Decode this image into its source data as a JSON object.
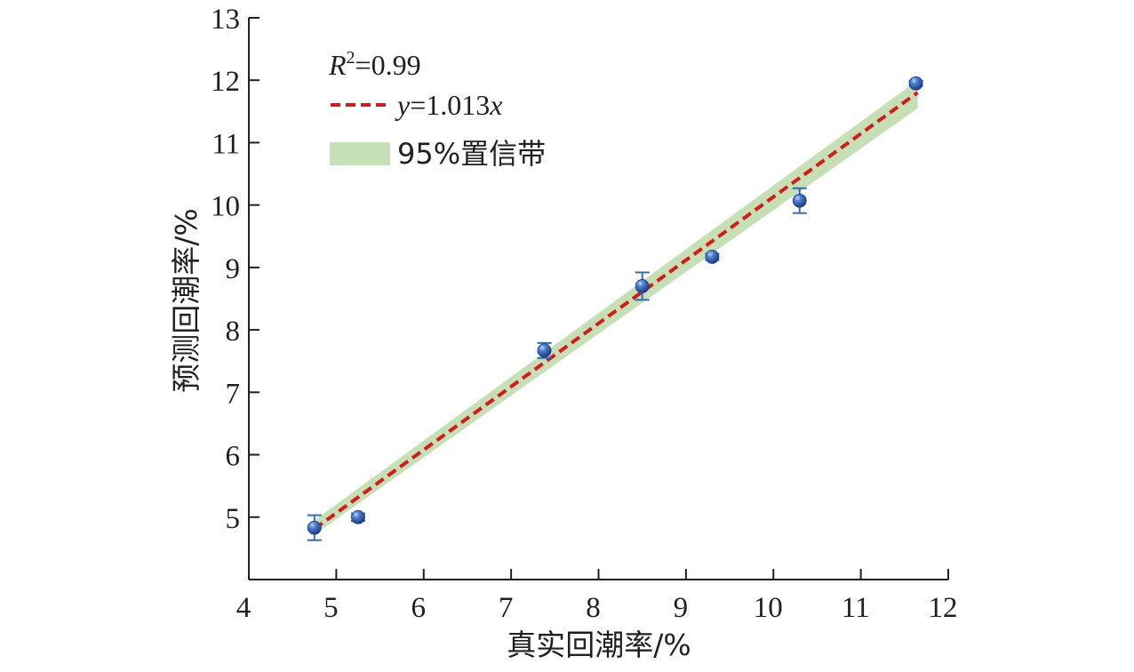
{
  "chart_data": {
    "type": "scatter",
    "xlabel": "真实回潮率/%",
    "ylabel": "预测回潮率/%",
    "xlim": [
      4,
      12
    ],
    "ylim": [
      4,
      13
    ],
    "xticks": [
      "4",
      "5",
      "6",
      "7",
      "8",
      "9",
      "10",
      "11",
      "12"
    ],
    "yticks": [
      "5",
      "6",
      "7",
      "8",
      "9",
      "10",
      "11",
      "12",
      "13"
    ],
    "grid": false,
    "legend_position": "top-left",
    "legend": {
      "r2_label": "R",
      "r2_sup": "2",
      "r2_value": "=0.99",
      "fit_y": "y",
      "fit_eq": "=1.013",
      "fit_x": "x",
      "band_label": "95%置信带"
    },
    "fit_line": {
      "slope": 1.013,
      "x_range": [
        4.75,
        11.65
      ],
      "color": "#d7191c",
      "style": "dashed"
    },
    "confidence_band": {
      "lower": [
        [
          4.75,
          4.72
        ],
        [
          11.65,
          11.55
        ]
      ],
      "upper": [
        [
          4.75,
          4.95
        ],
        [
          11.65,
          12.0
        ]
      ],
      "color": "#c5e0b4"
    },
    "points": [
      {
        "x": 4.75,
        "y": 4.83,
        "err": 0.2
      },
      {
        "x": 5.25,
        "y": 5.0,
        "err": 0.06
      },
      {
        "x": 7.38,
        "y": 7.67,
        "err": 0.12
      },
      {
        "x": 8.5,
        "y": 8.7,
        "err": 0.22
      },
      {
        "x": 9.3,
        "y": 9.17,
        "err": 0.05
      },
      {
        "x": 10.3,
        "y": 10.07,
        "err": 0.2
      },
      {
        "x": 11.63,
        "y": 11.95,
        "err": 0.04
      }
    ],
    "point_color": "#2e5aa8",
    "errorbar_color": "#2e6fb5"
  }
}
